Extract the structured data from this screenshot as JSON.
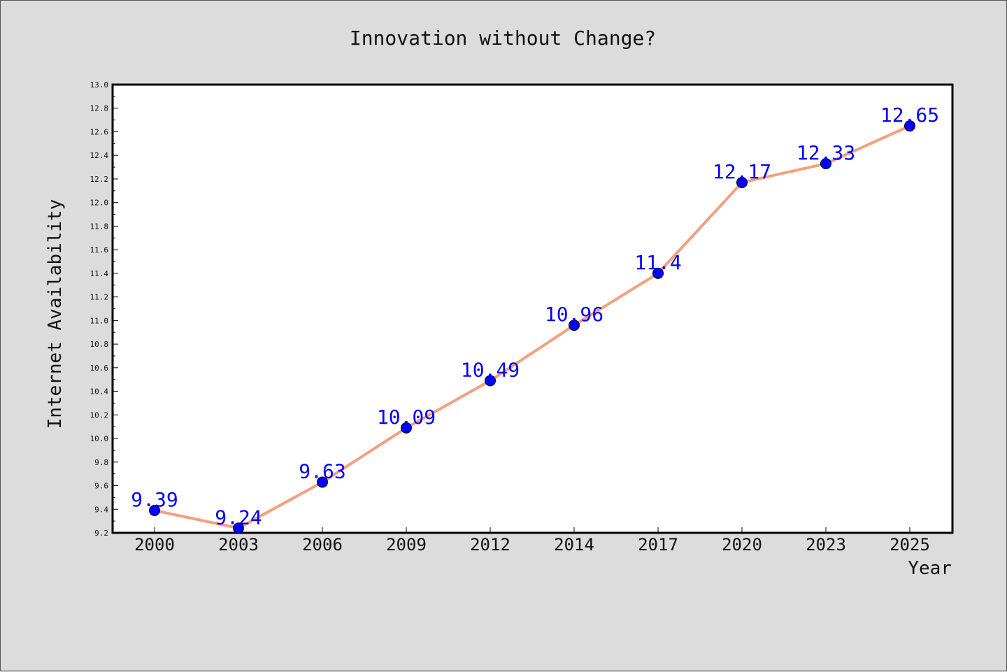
{
  "chart_data": {
    "type": "line",
    "title": "Innovation without Change?",
    "xlabel": "Year",
    "ylabel": "Internet Availability",
    "categories": [
      "2000",
      "2003",
      "2006",
      "2009",
      "2012",
      "2014",
      "2017",
      "2020",
      "2023",
      "2025"
    ],
    "series": [
      {
        "values": [
          9.39,
          9.24,
          9.63,
          10.09,
          10.49,
          10.96,
          11.4,
          12.17,
          12.33,
          12.65
        ],
        "labels": [
          "9.39",
          "9.24",
          "9.63",
          "10.09",
          "10.49",
          "10.96",
          "11.4",
          "12.17",
          "12.33",
          "12.65"
        ],
        "line_color": "#f4a07e",
        "marker_color": "#0000ff"
      }
    ],
    "ylim": [
      9.2,
      13.0
    ],
    "yticks": [
      "9.2",
      "9.4",
      "9.6",
      "9.8",
      "10.0",
      "10.2",
      "10.4",
      "10.6",
      "10.8",
      "11.0",
      "11.2",
      "11.4",
      "11.6",
      "11.8",
      "12.0",
      "12.2",
      "12.4",
      "12.6",
      "12.8",
      "13.0"
    ],
    "grid": false,
    "legend": "none"
  },
  "colors": {
    "background": "#dcdcdc",
    "plot_background": "#ffffff",
    "data_label": "#0000ff"
  }
}
